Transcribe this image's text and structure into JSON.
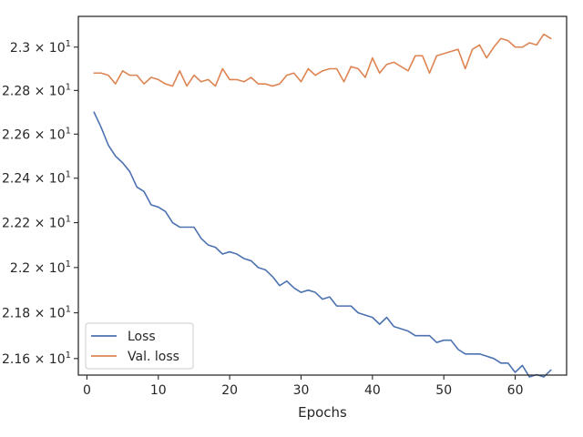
{
  "chart_data": {
    "type": "line",
    "title": "",
    "xlabel": "Epochs",
    "ylabel": "",
    "xlim": [
      -1.2,
      67.2
    ],
    "ylim": [
      21.528,
      23.143
    ],
    "yscale": "log",
    "grid": false,
    "legend_position": "bottom-left",
    "x_ticks": [
      0,
      10,
      20,
      30,
      40,
      50,
      60
    ],
    "x_tick_labels": [
      "0",
      "10",
      "20",
      "30",
      "40",
      "50",
      "60"
    ],
    "y_ticks": [
      21.6,
      21.8,
      22.0,
      22.2,
      22.4,
      22.6,
      22.8,
      23.0
    ],
    "y_tick_labels": [
      {
        "mantissa": "2.16",
        "exp": "1"
      },
      {
        "mantissa": "2.18",
        "exp": "1"
      },
      {
        "mantissa": "2.2",
        "exp": "1"
      },
      {
        "mantissa": "2.22",
        "exp": "1"
      },
      {
        "mantissa": "2.24",
        "exp": "1"
      },
      {
        "mantissa": "2.26",
        "exp": "1"
      },
      {
        "mantissa": "2.28",
        "exp": "1"
      },
      {
        "mantissa": "2.3",
        "exp": "1"
      }
    ],
    "x": [
      1,
      2,
      3,
      4,
      5,
      6,
      7,
      8,
      9,
      10,
      11,
      12,
      13,
      14,
      15,
      16,
      17,
      18,
      19,
      20,
      21,
      22,
      23,
      24,
      25,
      26,
      27,
      28,
      29,
      30,
      31,
      32,
      33,
      34,
      35,
      36,
      37,
      38,
      39,
      40,
      41,
      42,
      43,
      44,
      45,
      46,
      47,
      48,
      49,
      50,
      51,
      52,
      53,
      54,
      55,
      56,
      57,
      58,
      59,
      60,
      61,
      62,
      63,
      64,
      65
    ],
    "series": [
      {
        "name": "Loss",
        "color": "#4c72b0",
        "values": [
          22.7,
          22.63,
          22.55,
          22.5,
          22.47,
          22.43,
          22.36,
          22.34,
          22.28,
          22.27,
          22.25,
          22.2,
          22.18,
          22.18,
          22.18,
          22.13,
          22.1,
          22.09,
          22.06,
          22.07,
          22.06,
          22.04,
          22.03,
          22.0,
          21.99,
          21.96,
          21.92,
          21.94,
          21.91,
          21.89,
          21.9,
          21.89,
          21.86,
          21.87,
          21.83,
          21.83,
          21.83,
          21.8,
          21.79,
          21.78,
          21.75,
          21.78,
          21.74,
          21.73,
          21.72,
          21.7,
          21.7,
          21.7,
          21.67,
          21.68,
          21.68,
          21.64,
          21.62,
          21.62,
          21.62,
          21.61,
          21.6,
          21.58,
          21.58,
          21.54,
          21.57,
          21.52,
          21.53,
          21.52,
          21.55
        ]
      },
      {
        "name": "Val. loss",
        "color": "#dd8452",
        "values": [
          22.88,
          22.88,
          22.87,
          22.83,
          22.89,
          22.87,
          22.87,
          22.83,
          22.86,
          22.85,
          22.83,
          22.82,
          22.89,
          22.82,
          22.87,
          22.84,
          22.85,
          22.82,
          22.9,
          22.85,
          22.85,
          22.84,
          22.86,
          22.83,
          22.83,
          22.82,
          22.83,
          22.87,
          22.88,
          22.84,
          22.9,
          22.87,
          22.89,
          22.9,
          22.9,
          22.84,
          22.91,
          22.9,
          22.86,
          22.95,
          22.88,
          22.92,
          22.93,
          22.91,
          22.89,
          22.96,
          22.96,
          22.88,
          22.96,
          22.97,
          22.98,
          22.99,
          22.9,
          22.99,
          23.01,
          22.95,
          23.0,
          23.04,
          23.03,
          23.0,
          23.0,
          23.02,
          23.01,
          23.06,
          23.04
        ]
      }
    ]
  }
}
